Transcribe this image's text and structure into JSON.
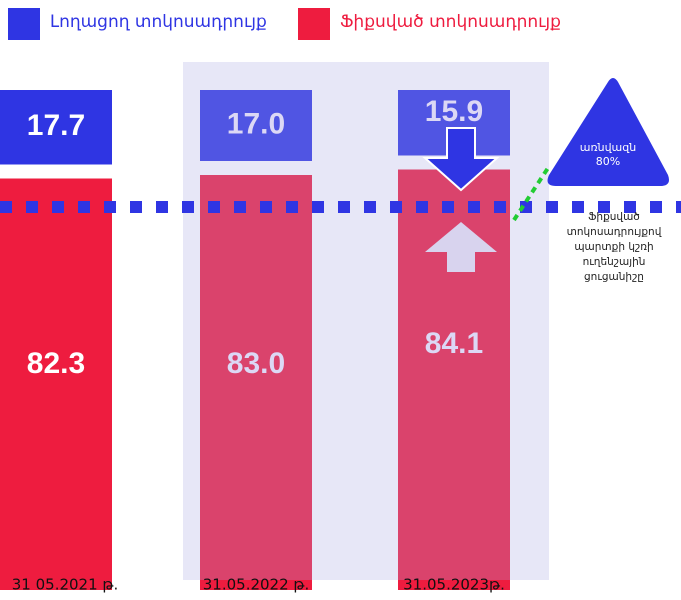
{
  "chart_data": {
    "type": "stacked_bar",
    "categories": [
      "31 05.2021 թ.",
      "31.05.2022 թ.",
      "31.05.2023թ."
    ],
    "series": [
      {
        "name": "Ֆիքսված տոկոսադրույք",
        "color": "#ee1c3f",
        "values": [
          82.3,
          83.0,
          84.1
        ],
        "value_labels": [
          "82.3",
          "83.0",
          "84.1"
        ]
      },
      {
        "name": "Լողացող տոկոսադրույք",
        "color": "#2f35e3",
        "values": [
          17.7,
          17.0,
          15.9
        ],
        "value_labels": [
          "17.7",
          "17.0",
          "15.9"
        ]
      }
    ],
    "ylim": [
      0,
      100
    ],
    "target": {
      "value": 80,
      "label": "առնվազն 80%",
      "note": "Ֆիքսված տոկոսադրույքով պարտքի կշռի ուղենշային ցուցանիշը"
    }
  }
}
